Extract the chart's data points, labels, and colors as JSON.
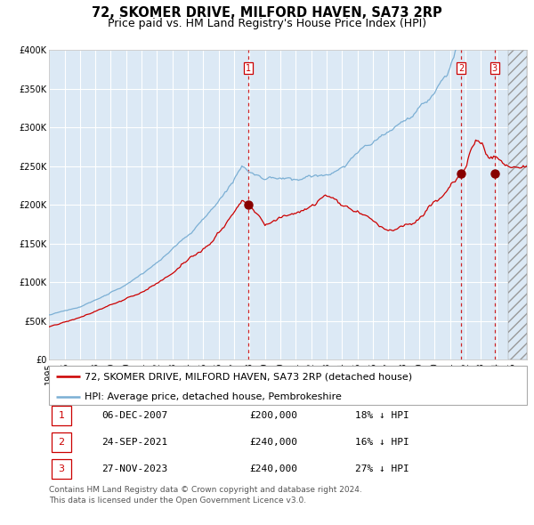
{
  "title": "72, SKOMER DRIVE, MILFORD HAVEN, SA73 2RP",
  "subtitle": "Price paid vs. HM Land Registry's House Price Index (HPI)",
  "legend_label_red": "72, SKOMER DRIVE, MILFORD HAVEN, SA73 2RP (detached house)",
  "legend_label_blue": "HPI: Average price, detached house, Pembrokeshire",
  "footer_line1": "Contains HM Land Registry data © Crown copyright and database right 2024.",
  "footer_line2": "This data is licensed under the Open Government Licence v3.0.",
  "transactions": [
    {
      "num": 1,
      "date": "06-DEC-2007",
      "price": 200000,
      "pct": "18%",
      "dir": "↓",
      "x_year": 2007.92
    },
    {
      "num": 2,
      "date": "24-SEP-2021",
      "price": 240000,
      "pct": "16%",
      "dir": "↓",
      "x_year": 2021.73
    },
    {
      "num": 3,
      "date": "27-NOV-2023",
      "price": 240000,
      "pct": "27%",
      "dir": "↓",
      "x_year": 2023.9
    }
  ],
  "ylim": [
    0,
    400000
  ],
  "xlim_start": 1995.0,
  "xlim_end": 2026.0,
  "bg_color_plot": "#dce9f5",
  "bg_color_fig": "#ffffff",
  "hatch_region_start": 2024.75,
  "red_color": "#cc0000",
  "blue_color": "#7bafd4",
  "grid_color": "#ffffff",
  "title_fontsize": 10.5,
  "subtitle_fontsize": 9,
  "tick_fontsize": 7,
  "legend_fontsize": 8,
  "footer_fontsize": 6.5,
  "table_fontsize": 8
}
